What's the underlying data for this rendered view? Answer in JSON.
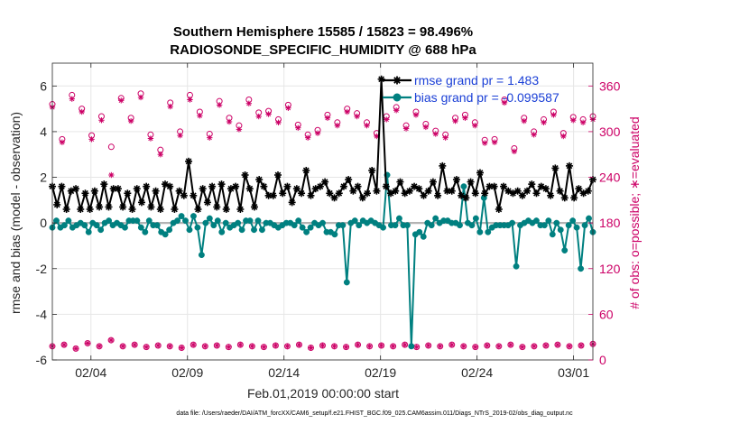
{
  "chart_data": {
    "type": "line",
    "title_line1": "Southern Hemisphere 15585 / 15823 = 98.496%",
    "title_line2": "RADIOSONDE_SPECIFIC_HUMIDITY @ 688 hPa",
    "xlabel": "Feb.01,2019 00:00:00 start",
    "ylabel": "rmse and bias (model - observation)",
    "ylabel_right": "# of obs: o=possible; ∗=evaluated",
    "footer": "data file: /Users/raeder/DAI/ATM_forcXX/CAM6_setup/f.e21.FHIST_BGC.f09_025.CAM6assim.011/Diags_NTrS_2019-02/obs_diag_output.nc",
    "xlim": [
      1,
      29
    ],
    "ylim": [
      -6,
      7
    ],
    "ylim_right": [
      0,
      390
    ],
    "grid": true,
    "x_ticks": [
      3,
      8,
      13,
      18,
      23,
      28
    ],
    "x_tick_labels": [
      "02/04",
      "02/09",
      "02/14",
      "02/19",
      "02/24",
      "03/01"
    ],
    "y_ticks": [
      -6,
      -4,
      -2,
      0,
      2,
      4,
      6
    ],
    "y_tick_labels": [
      "-6",
      "-4",
      "-2",
      "0",
      "2",
      "4",
      "6"
    ],
    "y_right_ticks": [
      0,
      60,
      120,
      180,
      240,
      300,
      360
    ],
    "y_right_tick_labels": [
      "0",
      "60",
      "120",
      "180",
      "240",
      "300",
      "360"
    ],
    "zero_line": 0,
    "legend": [
      "rmse grand pr = 1.483",
      "bias grand pr = -0.099587"
    ],
    "colors": {
      "rmse": "#000000",
      "bias": "#008080",
      "obs": "#cc0066",
      "legend_text": "#1a3fd6",
      "right_axis": "#cc0066",
      "grid": "#e6e6e6",
      "zero_line": "#b3b3b3"
    },
    "series": [
      {
        "name": "rmse",
        "values": [
          1.6,
          0.8,
          1.6,
          0.6,
          1.4,
          1.5,
          0.6,
          1.3,
          0.6,
          1.4,
          0.7,
          1.7,
          0.7,
          1.5,
          1.5,
          0.7,
          1.3,
          0.6,
          1.5,
          0.9,
          1.6,
          0.7,
          1.4,
          0.6,
          1.7,
          1.6,
          0.6,
          1.4,
          1.2,
          2.7,
          1.2,
          0.6,
          1.5,
          0.9,
          1.6,
          0.7,
          1.7,
          0.6,
          1.5,
          1.6,
          0.6,
          2.1,
          1.5,
          0.7,
          1.9,
          1.6,
          1.2,
          1.2,
          2.1,
          1.3,
          1.6,
          0.9,
          1.5,
          1.3,
          2.3,
          1.2,
          1.5,
          1.6,
          1.8,
          1.3,
          1.1,
          1.3,
          1.6,
          1.9,
          1.4,
          1.6,
          1.1,
          1.3,
          2.3,
          1.4,
          6.3,
          1.6,
          1.3,
          1.4,
          1.8,
          1.3,
          1.4,
          1.6,
          1.5,
          1.2,
          1.4,
          1.8,
          1.2,
          2.5,
          1.4,
          1.4,
          1.9,
          1.2,
          1.1,
          1.8,
          1.3,
          2.2,
          1.3,
          1.6,
          1.6,
          0.6,
          1.6,
          1.4,
          1.3,
          1.4,
          1.2,
          1.4,
          1.7,
          1.3,
          1.6,
          1.5,
          1.2,
          2.4,
          1.4,
          1.1,
          2.5,
          1.1,
          1.5,
          1.3,
          1.4,
          1.9
        ]
      },
      {
        "name": "bias",
        "values": [
          -0.2,
          0.1,
          -0.2,
          -0.1,
          0.1,
          -0.2,
          -0.1,
          0.0,
          -0.1,
          -0.4,
          0.0,
          -0.1,
          -0.3,
          0.0,
          0.1,
          -0.1,
          0.0,
          -0.1,
          -0.2,
          0.1,
          0.1,
          0.1,
          -0.2,
          -0.4,
          0.1,
          -0.1,
          -0.1,
          -0.4,
          -0.5,
          -0.3,
          0.0,
          0.1,
          0.3,
          0.1,
          -0.3,
          0.3,
          -0.2,
          -1.4,
          0.0,
          0.2,
          -0.1,
          0.1,
          -0.4,
          0.0,
          -0.2,
          -0.1,
          0.0,
          -0.3,
          0.1,
          0.1,
          -0.3,
          0.1,
          -0.3,
          0.0,
          0.0,
          -0.1,
          -0.2,
          -0.1,
          0.0,
          0.0,
          -0.1,
          0.1,
          -0.2,
          -0.4,
          -0.2,
          0.0,
          -0.1,
          0.0,
          -0.4,
          -0.4,
          -0.5,
          -0.1,
          -0.1,
          -2.6,
          0.0,
          0.1,
          -0.1,
          0.1,
          0.0,
          0.1,
          0.0,
          -0.1,
          -0.2,
          2.1,
          -0.1,
          -0.1,
          0.2,
          -0.1,
          -0.1,
          -5.4,
          -0.5,
          -0.4,
          -0.6,
          0.0,
          -0.1,
          0.2,
          0.0,
          0.1,
          0.1,
          0.0,
          0.0,
          -0.1,
          1.6,
          0.0,
          -0.1,
          0.2,
          -0.4,
          1.1,
          -0.4,
          -0.2,
          -0.1,
          -0.1,
          -0.1,
          -0.1,
          0.0,
          -1.9,
          -0.1,
          0.0,
          0.1,
          0.0,
          0.1,
          -0.1,
          -0.1,
          0.1,
          -0.5,
          0.0,
          -0.3,
          -1.2,
          -0.1,
          0.1,
          -0.2,
          -2.0,
          -0.1,
          0.2,
          -0.4
        ]
      },
      {
        "name": "obs_possible",
        "values": [
          336,
          290,
          348,
          330,
          295,
          320,
          280,
          344,
          318,
          350,
          296,
          276,
          338,
          300,
          348,
          326,
          297,
          340,
          318,
          308,
          342,
          325,
          327,
          316,
          335,
          309,
          296,
          302,
          322,
          312,
          330,
          324,
          312,
          298,
          320,
          332,
          308,
          326,
          310,
          301,
          296,
          318,
          322,
          312,
          289,
          290,
          342,
          278,
          318,
          300,
          316,
          326,
          298,
          319,
          316,
          320
        ]
      },
      {
        "name": "obs_evaluated",
        "values": [
          332,
          286,
          343,
          326,
          290,
          315,
          243,
          341,
          314,
          345,
          291,
          270,
          333,
          295,
          342,
          321,
          292,
          335,
          313,
          303,
          337,
          320,
          323,
          312,
          331,
          305,
          292,
          298,
          318,
          308,
          326,
          320,
          308,
          294,
          316,
          328,
          304,
          322,
          306,
          297,
          292,
          314,
          318,
          308,
          285,
          286,
          338,
          274,
          314,
          296,
          312,
          322,
          294,
          315,
          312,
          316
        ]
      },
      {
        "name": "obs_low_possible",
        "values": [
          18,
          20,
          15,
          22,
          18,
          26,
          18,
          20,
          17,
          19,
          18,
          16,
          20,
          18,
          19,
          17,
          20,
          18,
          17,
          19,
          18,
          20,
          16,
          19,
          18,
          17,
          20,
          18,
          19,
          18,
          20,
          17,
          19,
          18,
          20,
          18,
          17,
          19,
          18,
          20,
          17,
          18,
          19,
          20,
          18,
          19,
          21
        ]
      }
    ]
  }
}
